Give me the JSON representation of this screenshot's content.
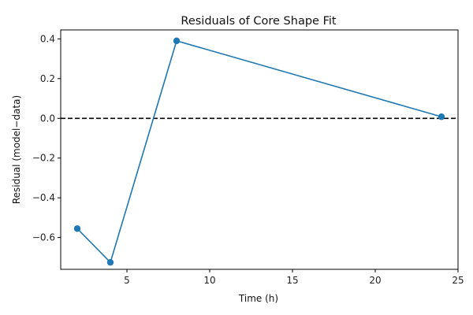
{
  "chart_data": {
    "type": "line",
    "title": "Residuals of Core Shape Fit",
    "xlabel": "Time (h)",
    "ylabel": "Residual (model−data)",
    "x": [
      2,
      4,
      8,
      24
    ],
    "y": [
      -0.555,
      -0.725,
      0.39,
      0.008
    ],
    "xlim": [
      1.0,
      25.0
    ],
    "ylim": [
      -0.76,
      0.445
    ],
    "xticks": [
      5,
      10,
      15,
      20,
      25
    ],
    "yticks": [
      -0.6,
      -0.4,
      -0.2,
      0.0,
      0.2,
      0.4
    ],
    "ytick_labels": [
      "−0.6",
      "−0.4",
      "−0.2",
      "0.0",
      "0.2",
      "0.4"
    ],
    "reference_line": {
      "y": 0,
      "style": "dashed",
      "color": "#000000"
    },
    "grid": false,
    "legend": "none",
    "line_color": "#1f77b4",
    "marker": "circle"
  }
}
